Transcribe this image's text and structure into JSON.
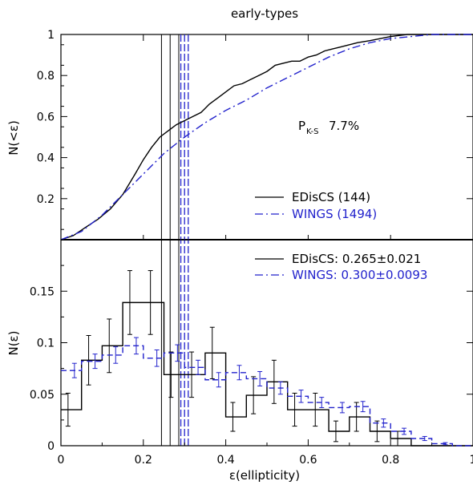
{
  "chart_data": [
    {
      "type": "line",
      "panel": "top",
      "title": "early-types",
      "ylabel": "N(<ε)",
      "xlim": [
        0,
        1
      ],
      "ylim": [
        0,
        1
      ],
      "yticks": [
        "0",
        "0.2",
        "0.4",
        "0.6",
        "0.8",
        "1"
      ],
      "annotation_main": "P",
      "annotation_sub": "K-S",
      "annotation_value": "7.7%",
      "series": [
        {
          "name": "EDisCS (144)",
          "color": "#000000",
          "style": "solid",
          "x": [
            0.0,
            0.03,
            0.06,
            0.09,
            0.12,
            0.15,
            0.18,
            0.2,
            0.22,
            0.24,
            0.26,
            0.28,
            0.3,
            0.32,
            0.34,
            0.36,
            0.38,
            0.4,
            0.42,
            0.44,
            0.46,
            0.48,
            0.5,
            0.52,
            0.54,
            0.56,
            0.58,
            0.6,
            0.62,
            0.64,
            0.66,
            0.68,
            0.7,
            0.72,
            0.75,
            0.8,
            0.84,
            1.0
          ],
          "y": [
            0.0,
            0.02,
            0.06,
            0.1,
            0.15,
            0.22,
            0.32,
            0.39,
            0.45,
            0.5,
            0.53,
            0.56,
            0.58,
            0.6,
            0.62,
            0.66,
            0.69,
            0.72,
            0.75,
            0.76,
            0.78,
            0.8,
            0.82,
            0.85,
            0.86,
            0.87,
            0.87,
            0.89,
            0.9,
            0.92,
            0.93,
            0.94,
            0.95,
            0.96,
            0.97,
            0.99,
            1.0,
            1.0
          ]
        },
        {
          "name": "WINGS (1494)",
          "color": "#2222cc",
          "style": "dash-dot",
          "x": [
            0.0,
            0.05,
            0.1,
            0.15,
            0.2,
            0.25,
            0.3,
            0.35,
            0.4,
            0.45,
            0.5,
            0.55,
            0.6,
            0.65,
            0.7,
            0.75,
            0.8,
            0.85,
            0.9,
            1.0
          ],
          "y": [
            0.0,
            0.04,
            0.12,
            0.22,
            0.32,
            0.42,
            0.5,
            0.57,
            0.63,
            0.68,
            0.74,
            0.79,
            0.84,
            0.89,
            0.93,
            0.96,
            0.98,
            0.99,
            1.0,
            1.0
          ]
        }
      ]
    },
    {
      "type": "histogram",
      "panel": "bottom",
      "xlabel": "ε(ellipticity)",
      "ylabel": "N(ε)",
      "xlim": [
        0,
        1
      ],
      "ylim": [
        0,
        0.2
      ],
      "xticks": [
        "0",
        "0.2",
        "0.4",
        "0.6",
        "0.8",
        "1"
      ],
      "yticks": [
        "0",
        "0.05",
        "0.1",
        "0.15"
      ],
      "bin_width": 0.05,
      "x": [
        0.025,
        0.075,
        0.125,
        0.175,
        0.225,
        0.275,
        0.325,
        0.375,
        0.425,
        0.475,
        0.525,
        0.575,
        0.625,
        0.675,
        0.725,
        0.775,
        0.825,
        0.875,
        0.925,
        0.975
      ],
      "series": [
        {
          "name": "EDisCS: 0.265±0.021",
          "color": "#000000",
          "style": "solid",
          "values": [
            0.035,
            0.083,
            0.097,
            0.139,
            0.139,
            0.069,
            0.069,
            0.09,
            0.028,
            0.049,
            0.062,
            0.035,
            0.035,
            0.014,
            0.028,
            0.014,
            0.007,
            0.0,
            0.0,
            0.0
          ],
          "errors": [
            0.016,
            0.024,
            0.026,
            0.031,
            0.031,
            0.022,
            0.022,
            0.025,
            0.014,
            0.018,
            0.021,
            0.016,
            0.016,
            0.01,
            0.014,
            0.01,
            0.007,
            0.0,
            0.0,
            0.0
          ]
        },
        {
          "name": "WINGS: 0.300±0.0093",
          "color": "#2222cc",
          "style": "dashed",
          "values": [
            0.073,
            0.082,
            0.088,
            0.097,
            0.085,
            0.09,
            0.076,
            0.064,
            0.071,
            0.065,
            0.056,
            0.048,
            0.042,
            0.037,
            0.038,
            0.022,
            0.014,
            0.007,
            0.002,
            0.0
          ],
          "errors": [
            0.007,
            0.007,
            0.008,
            0.008,
            0.008,
            0.008,
            0.007,
            0.007,
            0.007,
            0.007,
            0.006,
            0.006,
            0.005,
            0.005,
            0.005,
            0.004,
            0.003,
            0.002,
            0.001,
            0.0
          ]
        }
      ],
      "mean_lines": {
        "EDisCS": [
          0.244,
          0.265,
          0.286
        ],
        "WINGS": [
          0.291,
          0.3,
          0.309
        ]
      }
    }
  ]
}
